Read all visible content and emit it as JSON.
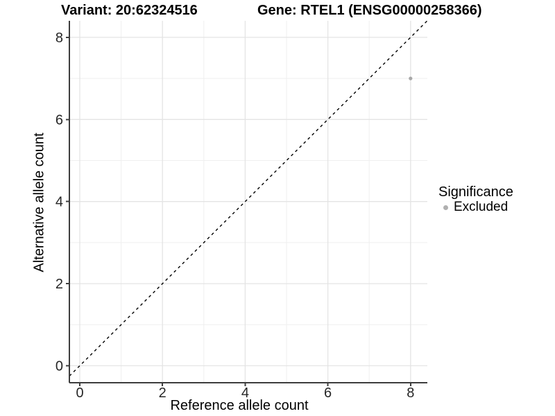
{
  "figure": {
    "title_left": "Variant: 20:62324516",
    "title_right": "Gene: RTEL1 (ENSG00000258366)"
  },
  "chart_data": {
    "type": "scatter",
    "title": "Variant: 20:62324516   Gene: RTEL1 (ENSG00000258366)",
    "xlabel": "Reference allele count",
    "ylabel": "Alternative allele count",
    "xlim": [
      -0.25,
      8.4
    ],
    "ylim": [
      -0.42,
      8.4
    ],
    "x_ticks": [
      0,
      2,
      4,
      6,
      8
    ],
    "y_ticks": [
      0,
      2,
      4,
      6,
      8
    ],
    "grid": "major-and-minor",
    "points": [
      {
        "x": 8,
        "y": 7,
        "series": "Excluded"
      }
    ],
    "reference_line": {
      "slope": 1,
      "intercept": 0,
      "style": "dashed",
      "color": "#000000"
    },
    "legend": {
      "title": "Significance",
      "position": "right",
      "items": [
        {
          "label": "Excluded",
          "color": "#b0b0b0",
          "marker": "circle"
        }
      ]
    },
    "style": {
      "point_color": "#a8a8a8",
      "grid_major_color": "#e4e4e4",
      "grid_minor_color": "#efefef",
      "axis_color": "#3d3d3d",
      "tick_label_color": "#262626",
      "background": "#ffffff"
    }
  }
}
